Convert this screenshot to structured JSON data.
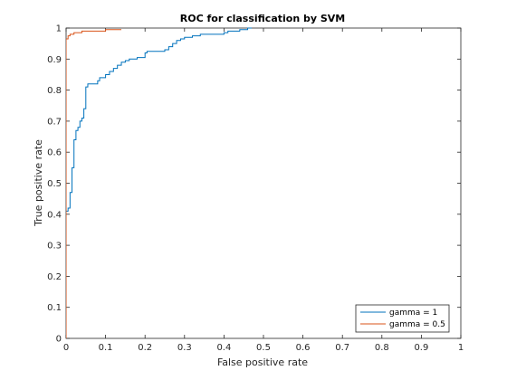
{
  "chart_data": {
    "type": "line",
    "title": "ROC for classification by SVM",
    "xlabel": "False positive rate",
    "ylabel": "True positive rate",
    "xlim": [
      0,
      1
    ],
    "ylim": [
      0,
      1
    ],
    "xticks": [
      "0",
      "0.1",
      "0.2",
      "0.3",
      "0.4",
      "0.5",
      "0.6",
      "0.7",
      "0.8",
      "0.9",
      "1"
    ],
    "yticks": [
      "0",
      "0.1",
      "0.2",
      "0.3",
      "0.4",
      "0.5",
      "0.6",
      "0.7",
      "0.8",
      "0.9",
      "1"
    ],
    "grid": false,
    "legend_position": "bottom-right",
    "series": [
      {
        "name": "gamma = 1",
        "color": "#0072BD",
        "x": [
          0,
          0,
          0.005,
          0.005,
          0.01,
          0.01,
          0.015,
          0.015,
          0.02,
          0.02,
          0.025,
          0.025,
          0.03,
          0.03,
          0.035,
          0.035,
          0.04,
          0.04,
          0.045,
          0.045,
          0.05,
          0.05,
          0.055,
          0.055,
          0.08,
          0.08,
          0.085,
          0.085,
          0.1,
          0.1,
          0.11,
          0.11,
          0.12,
          0.12,
          0.13,
          0.13,
          0.14,
          0.14,
          0.15,
          0.15,
          0.16,
          0.16,
          0.17,
          0.17,
          0.18,
          0.18,
          0.2,
          0.2,
          0.205,
          0.205,
          0.25,
          0.25,
          0.26,
          0.26,
          0.27,
          0.27,
          0.28,
          0.28,
          0.29,
          0.29,
          0.3,
          0.3,
          0.32,
          0.32,
          0.34,
          0.34,
          0.4,
          0.4,
          0.41,
          0.41,
          0.44,
          0.44,
          0.46,
          0.46,
          0.47
        ],
        "y": [
          0,
          0.41,
          0.41,
          0.42,
          0.42,
          0.47,
          0.47,
          0.55,
          0.55,
          0.64,
          0.64,
          0.67,
          0.67,
          0.68,
          0.68,
          0.7,
          0.7,
          0.71,
          0.71,
          0.74,
          0.74,
          0.81,
          0.81,
          0.82,
          0.82,
          0.83,
          0.83,
          0.84,
          0.84,
          0.85,
          0.85,
          0.86,
          0.86,
          0.87,
          0.87,
          0.88,
          0.88,
          0.89,
          0.89,
          0.895,
          0.895,
          0.9,
          0.9,
          0.9,
          0.9,
          0.905,
          0.905,
          0.92,
          0.92,
          0.925,
          0.925,
          0.93,
          0.93,
          0.94,
          0.94,
          0.95,
          0.95,
          0.96,
          0.96,
          0.965,
          0.965,
          0.97,
          0.97,
          0.975,
          0.975,
          0.98,
          0.98,
          0.985,
          0.985,
          0.99,
          0.99,
          0.995,
          0.995,
          1.0,
          1.0
        ]
      },
      {
        "name": "gamma = 0.5",
        "color": "#D95319",
        "x": [
          0,
          0,
          0.005,
          0.005,
          0.01,
          0.01,
          0.02,
          0.02,
          0.04,
          0.04,
          0.1,
          0.1,
          0.14
        ],
        "y": [
          0,
          0.965,
          0.965,
          0.975,
          0.975,
          0.98,
          0.98,
          0.985,
          0.985,
          0.99,
          0.99,
          0.995,
          0.995
        ]
      }
    ]
  }
}
